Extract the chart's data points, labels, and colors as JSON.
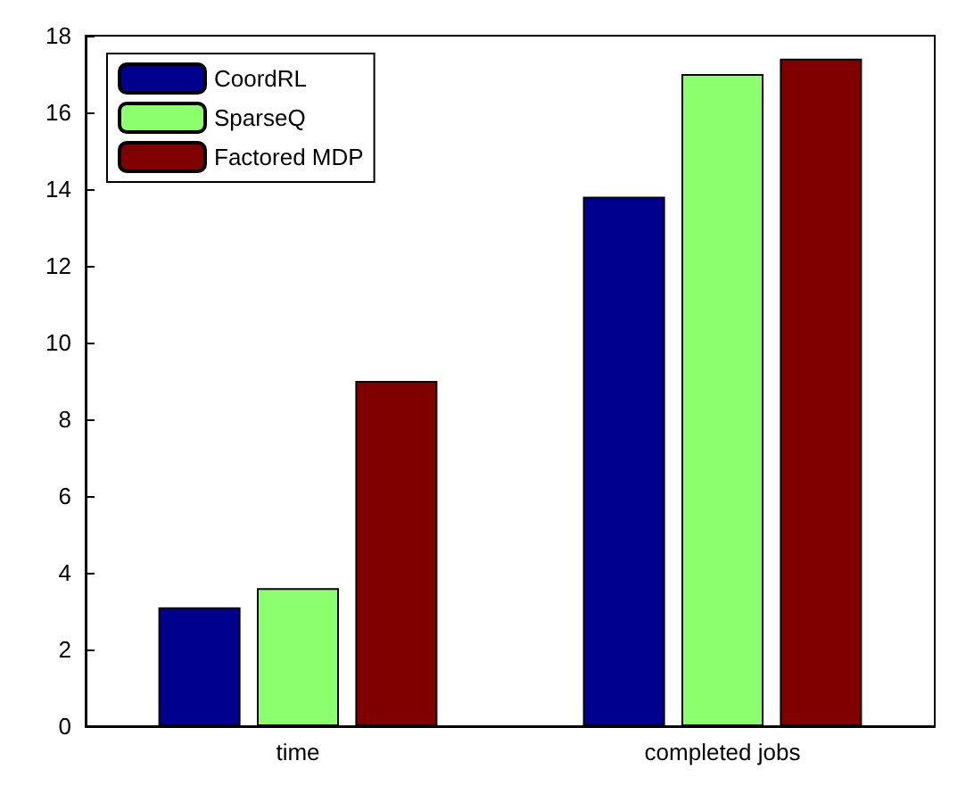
{
  "chart_data": {
    "type": "bar",
    "categories": [
      "time",
      "completed jobs"
    ],
    "series": [
      {
        "name": "CoordRL",
        "color": "#00008f",
        "values": [
          3.1,
          13.8
        ]
      },
      {
        "name": "SparseQ",
        "color": "#8cff6e",
        "values": [
          3.6,
          17.0
        ]
      },
      {
        "name": "Factored MDP",
        "color": "#800000",
        "values": [
          9.0,
          17.4
        ]
      }
    ],
    "ylim": [
      0,
      18
    ],
    "yticks": [
      0,
      2,
      4,
      6,
      8,
      10,
      12,
      14,
      16,
      18
    ],
    "grid": false,
    "legend": "top left"
  }
}
